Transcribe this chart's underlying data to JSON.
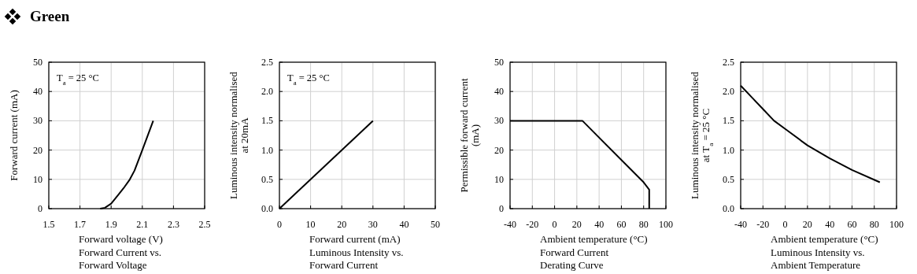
{
  "chart_data": [
    {
      "type": "other",
      "title": "Green"
    },
    {
      "type": "line",
      "title": "Forward Current vs. Forward Voltage",
      "xlabel": "Forward voltage (V)",
      "ylabel": "Forward current (mA)",
      "annotations": [
        "T$_{a}$ = 25 °C"
      ],
      "grid": true,
      "xlim": [
        1.5,
        2.5
      ],
      "xticks": [
        1.5,
        1.7,
        1.9,
        2.1,
        2.3,
        2.5
      ],
      "ylim": [
        0,
        50
      ],
      "yticks": [
        0,
        10,
        20,
        30,
        40,
        50
      ],
      "series": [
        {
          "color": "#000000",
          "x": [
            1.83,
            1.86,
            1.9,
            1.95,
            1.98,
            2.02,
            2.05,
            2.1,
            2.17
          ],
          "values": [
            0,
            0.3,
            1.7,
            5,
            7,
            10,
            13,
            20,
            30
          ]
        }
      ]
    },
    {
      "type": "line",
      "title": "Luminous Intensity vs. Forward Current",
      "xlabel": "Forward current (mA)",
      "ylabel": "Luminous intensity normalised at 20mA",
      "annotations": [
        "T$_{a}$ = 25 °C"
      ],
      "grid": true,
      "xlim": [
        0,
        50
      ],
      "xticks": [
        0,
        10,
        20,
        30,
        40,
        50
      ],
      "ylim": [
        0,
        2.5
      ],
      "yticks": [
        {
          "value": 0,
          "label": "0.0"
        },
        0.5,
        {
          "value": 1,
          "label": "1.0"
        },
        1.5,
        {
          "value": 2,
          "label": "2.0"
        },
        2.5
      ],
      "series": [
        {
          "color": "#000000",
          "x": [
            0,
            30
          ],
          "values": [
            0,
            1.5
          ]
        }
      ]
    },
    {
      "type": "line",
      "title": "Forward Current Derating  Curve",
      "xlabel": "Ambient temperature (°C)",
      "ylabel": "Permissible forward current (mA)",
      "grid": true,
      "xlim": [
        -40,
        100
      ],
      "xticks": [
        -40,
        -20,
        0,
        20,
        40,
        60,
        80,
        100
      ],
      "ylim": [
        0,
        50
      ],
      "yticks": [
        0,
        10,
        20,
        30,
        40,
        50
      ],
      "series": [
        {
          "color": "#000000",
          "x": [
            -40,
            25,
            80,
            85,
            85
          ],
          "values": [
            30,
            30,
            9,
            6.5,
            0
          ]
        }
      ]
    },
    {
      "type": "line",
      "title": "Luminous Intensity vs. Ambient Temperature",
      "xlabel": "Ambient temperature (°C)",
      "ylabel": "Luminous intensity normalised at T$_{a}$ = 25 °C",
      "grid": true,
      "xlim": [
        -40,
        100
      ],
      "xticks": [
        -40,
        -20,
        0,
        20,
        40,
        60,
        80,
        100
      ],
      "ylim": [
        0,
        2.5
      ],
      "yticks": [
        {
          "value": 0,
          "label": "0.0"
        },
        0.5,
        {
          "value": 1,
          "label": "1.0"
        },
        1.5,
        {
          "value": 2,
          "label": "2.0"
        },
        2.5
      ],
      "series": [
        {
          "color": "#000000",
          "x": [
            -40,
            -30,
            -20,
            -10,
            0,
            20,
            40,
            60,
            85
          ],
          "values": [
            2.1,
            1.9,
            1.7,
            1.5,
            1.36,
            1.08,
            0.86,
            0.66,
            0.45
          ]
        }
      ]
    }
  ]
}
